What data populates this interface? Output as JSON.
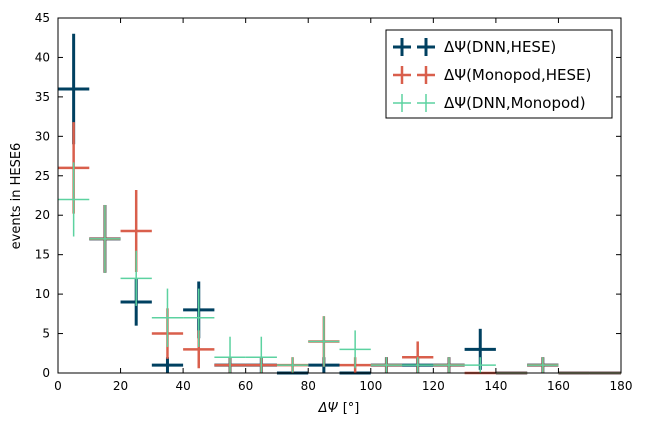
{
  "chart_data": {
    "type": "scatter",
    "title": "",
    "xlabel_symbol": "ΔΨ",
    "xlabel_unit": "[°]",
    "ylabel": "events in HESE6",
    "xlim": [
      0,
      180
    ],
    "ylim": [
      0,
      45
    ],
    "xticks": [
      "0",
      "20",
      "40",
      "60",
      "80",
      "100",
      "120",
      "140",
      "160",
      "180"
    ],
    "yticks": [
      "0",
      "5",
      "10",
      "15",
      "20",
      "25",
      "30",
      "35",
      "40",
      "45"
    ],
    "grid": false,
    "legend_position": "top-right",
    "series": [
      {
        "name": "ΔΨ(DNN,HESE)",
        "color": "#004060",
        "x": [
          5,
          15,
          25,
          35,
          45,
          55,
          65,
          75,
          85,
          95,
          105,
          115,
          125,
          135,
          145,
          155,
          165,
          175
        ],
        "y": [
          36,
          17,
          9,
          1,
          8,
          1,
          1,
          0,
          1,
          0,
          1,
          1,
          1,
          3,
          0,
          1,
          0,
          0
        ],
        "yerr": [
          7,
          4.3,
          3,
          1,
          3.6,
          1,
          1,
          0,
          1,
          0,
          1,
          1,
          1,
          2.6,
          0,
          1,
          0,
          0
        ]
      },
      {
        "name": "ΔΨ(Monopod,HESE)",
        "color": "#d95f4c",
        "x": [
          5,
          15,
          25,
          35,
          45,
          55,
          65,
          75,
          85,
          95,
          105,
          115,
          125,
          135,
          145,
          155,
          165,
          175
        ],
        "y": [
          26,
          17,
          18,
          5,
          3,
          1,
          1,
          1,
          4,
          1,
          1,
          2,
          1,
          0,
          0,
          1,
          0,
          0
        ],
        "yerr": [
          5.8,
          4.3,
          5.2,
          3.2,
          2.4,
          1,
          1,
          1,
          3.2,
          1,
          1,
          2,
          1,
          0,
          0,
          1,
          0,
          0
        ]
      },
      {
        "name": "ΔΨ(DNN,Monopod)",
        "color": "#5cd2a0",
        "x": [
          5,
          15,
          25,
          35,
          45,
          55,
          65,
          75,
          85,
          95,
          105,
          115,
          125,
          135,
          145,
          155,
          165,
          175
        ],
        "y": [
          22,
          17,
          12,
          7,
          7,
          2,
          2,
          1,
          4,
          3,
          1,
          1,
          1,
          1,
          0,
          1,
          0,
          0
        ],
        "yerr": [
          4.7,
          4.3,
          3.5,
          3.7,
          3.7,
          2.6,
          2.6,
          1,
          3.2,
          2.4,
          1,
          1,
          1,
          1,
          0,
          1,
          0,
          0
        ]
      }
    ]
  }
}
